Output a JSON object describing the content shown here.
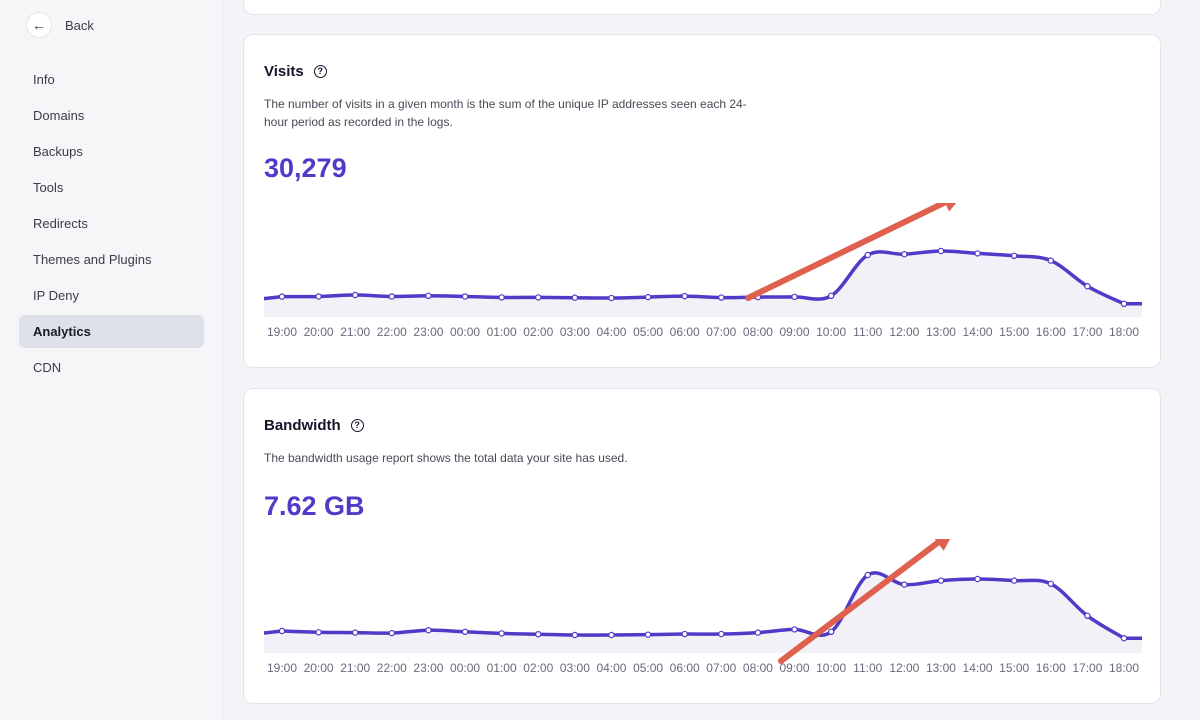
{
  "sidebar": {
    "back_label": "Back",
    "items": [
      {
        "label": "Info"
      },
      {
        "label": "Domains"
      },
      {
        "label": "Backups"
      },
      {
        "label": "Tools"
      },
      {
        "label": "Redirects"
      },
      {
        "label": "Themes and Plugins"
      },
      {
        "label": "IP Deny"
      },
      {
        "label": "Analytics",
        "active": true
      },
      {
        "label": "CDN"
      }
    ]
  },
  "visits": {
    "title": "Visits",
    "description": "The number of visits in a given month is the sum of the unique IP addresses seen each 24-hour period as recorded in the logs.",
    "value": "30,279"
  },
  "bandwidth": {
    "title": "Bandwidth",
    "description": "The bandwidth usage report shows the total data your site has used.",
    "value": "7.62 GB"
  },
  "colors": {
    "accent": "#4f3bc8",
    "fill": "#f1f1f7",
    "annotation_arrow": "#e0604f"
  },
  "chart_data": [
    {
      "type": "area",
      "x": [
        "19:00",
        "20:00",
        "21:00",
        "22:00",
        "23:00",
        "00:00",
        "01:00",
        "02:00",
        "03:00",
        "04:00",
        "05:00",
        "06:00",
        "07:00",
        "08:00",
        "09:00",
        "10:00",
        "11:00",
        "12:00",
        "13:00",
        "14:00",
        "15:00",
        "16:00",
        "17:00",
        "18:00"
      ],
      "values": [
        1.5,
        1.6,
        2.5,
        1.6,
        2.0,
        1.6,
        1.0,
        1.0,
        0.8,
        0.6,
        1.2,
        1.8,
        0.9,
        1.2,
        1.3,
        2.0,
        27.5,
        28.0,
        30.0,
        28.5,
        27.0,
        24.0,
        8.0,
        -3.0
      ],
      "ylim": [
        -10,
        60
      ],
      "title": "",
      "xlabel": "",
      "ylabel": ""
    },
    {
      "type": "area",
      "x": [
        "19:00",
        "20:00",
        "21:00",
        "22:00",
        "23:00",
        "00:00",
        "01:00",
        "02:00",
        "03:00",
        "04:00",
        "05:00",
        "06:00",
        "07:00",
        "08:00",
        "09:00",
        "10:00",
        "11:00",
        "12:00",
        "13:00",
        "14:00",
        "15:00",
        "16:00",
        "17:00",
        "18:00"
      ],
      "values": [
        2.5,
        1.7,
        1.5,
        1.2,
        3.0,
        2.0,
        1.0,
        0.5,
        0.0,
        0.0,
        0.2,
        0.6,
        0.6,
        1.5,
        3.5,
        2.0,
        37.5,
        31.5,
        34.0,
        35.0,
        34.0,
        32.0,
        12.0,
        -2.0
      ],
      "ylim": [
        -10,
        60
      ],
      "title": "",
      "xlabel": "",
      "ylabel": ""
    }
  ]
}
